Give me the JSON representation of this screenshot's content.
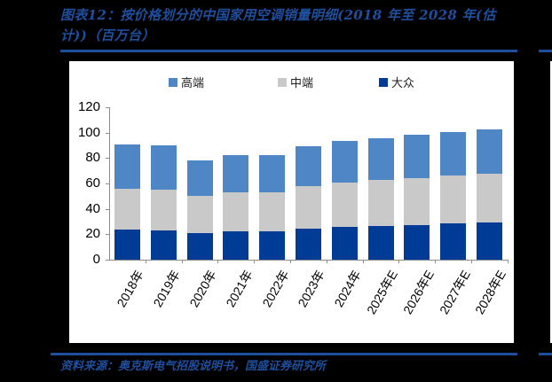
{
  "header": {
    "title_line1": "图表12：按价格划分的中国家用空调销量明细(2018 年至 2028 年(估",
    "title_line2": "计))（百万台）"
  },
  "footer": {
    "source": "资料来源：奥克斯电气招股说明书，国盛证券研究所"
  },
  "legend": [
    {
      "label": "高端",
      "color": "#4F86C6"
    },
    {
      "label": "中端",
      "color": "#C9C9C9"
    },
    {
      "label": "大众",
      "color": "#003C96"
    }
  ],
  "yaxis": {
    "ticks": [
      "0",
      "20",
      "40",
      "60",
      "80",
      "100",
      "120"
    ]
  },
  "xaxis": {
    "labels": [
      "2018年",
      "2019年",
      "2020年",
      "2021年",
      "2022年",
      "2023年",
      "2024年",
      "2025年E",
      "2026年E",
      "2027年E",
      "2028年E"
    ]
  },
  "chart_data": {
    "type": "bar",
    "stacked": true,
    "title": "图表12：按价格划分的中国家用空调销量明细(2018 年至 2028 年(估计))（百万台）",
    "xlabel": "",
    "ylabel": "百万台",
    "ylim": [
      0,
      120
    ],
    "yticks": [
      0,
      20,
      40,
      60,
      80,
      100,
      120
    ],
    "legend_position": "top",
    "grid": false,
    "categories": [
      "2018年",
      "2019年",
      "2020年",
      "2021年",
      "2022年",
      "2023年",
      "2024年",
      "2025年E",
      "2026年E",
      "2027年E",
      "2028年E"
    ],
    "series": [
      {
        "name": "大众",
        "color": "#003C96",
        "values": [
          23.7,
          22.8,
          21.1,
          22.5,
          22.3,
          24.4,
          25.6,
          26.3,
          27.4,
          28.4,
          29.3
        ]
      },
      {
        "name": "中端",
        "color": "#C9C9C9",
        "values": [
          32.3,
          32.0,
          29.3,
          30.7,
          30.5,
          33.4,
          34.8,
          36.2,
          36.9,
          37.8,
          38.5
        ]
      },
      {
        "name": "高端",
        "color": "#4F86C6",
        "values": [
          34.4,
          34.9,
          27.9,
          29.3,
          29.2,
          31.6,
          32.8,
          33.0,
          33.7,
          34.4,
          34.8
        ]
      }
    ],
    "totals": [
      90.4,
      89.7,
      78.3,
      82.5,
      82.0,
      89.4,
      93.2,
      95.5,
      98.0,
      100.6,
      102.6
    ],
    "source": "资料来源：奥克斯电气招股说明书，国盛证券研究所"
  }
}
